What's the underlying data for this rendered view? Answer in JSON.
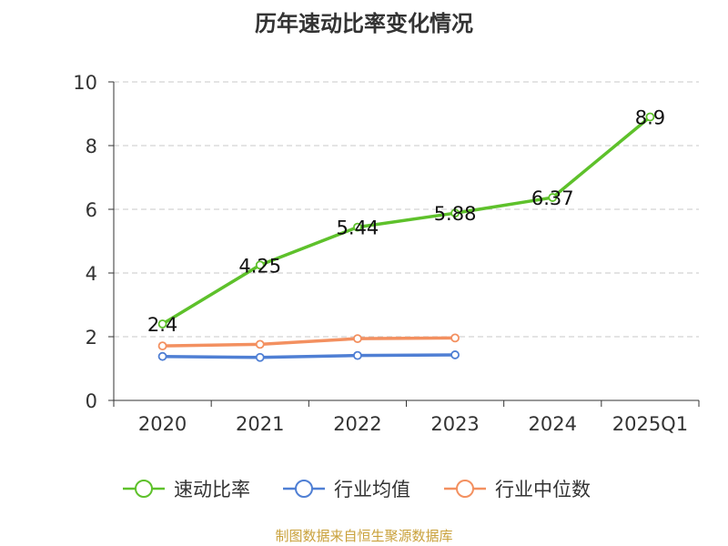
{
  "chart_data": {
    "type": "line",
    "title": "历年速动比率变化情况",
    "categories": [
      "2020",
      "2021",
      "2022",
      "2023",
      "2024",
      "2025Q1"
    ],
    "ylim": [
      0,
      10
    ],
    "yticks": [
      0,
      2,
      4,
      6,
      8,
      10
    ],
    "grid": true,
    "legend_position": "bottom-center",
    "series": [
      {
        "name": "速动比率",
        "color": "#5ec12b",
        "values": [
          2.4,
          4.25,
          5.44,
          5.88,
          6.37,
          8.9
        ],
        "labels": [
          "2.4",
          "4.25",
          "5.44",
          "5.88",
          "6.37",
          "8.9"
        ]
      },
      {
        "name": "行业均值",
        "color": "#4f7fd4",
        "values": [
          1.38,
          1.35,
          1.41,
          1.43,
          null,
          null
        ]
      },
      {
        "name": "行业中位数",
        "color": "#f39060",
        "values": [
          1.71,
          1.76,
          1.94,
          1.96,
          null,
          null
        ]
      }
    ]
  },
  "source": "制图数据来自恒生聚源数据库"
}
